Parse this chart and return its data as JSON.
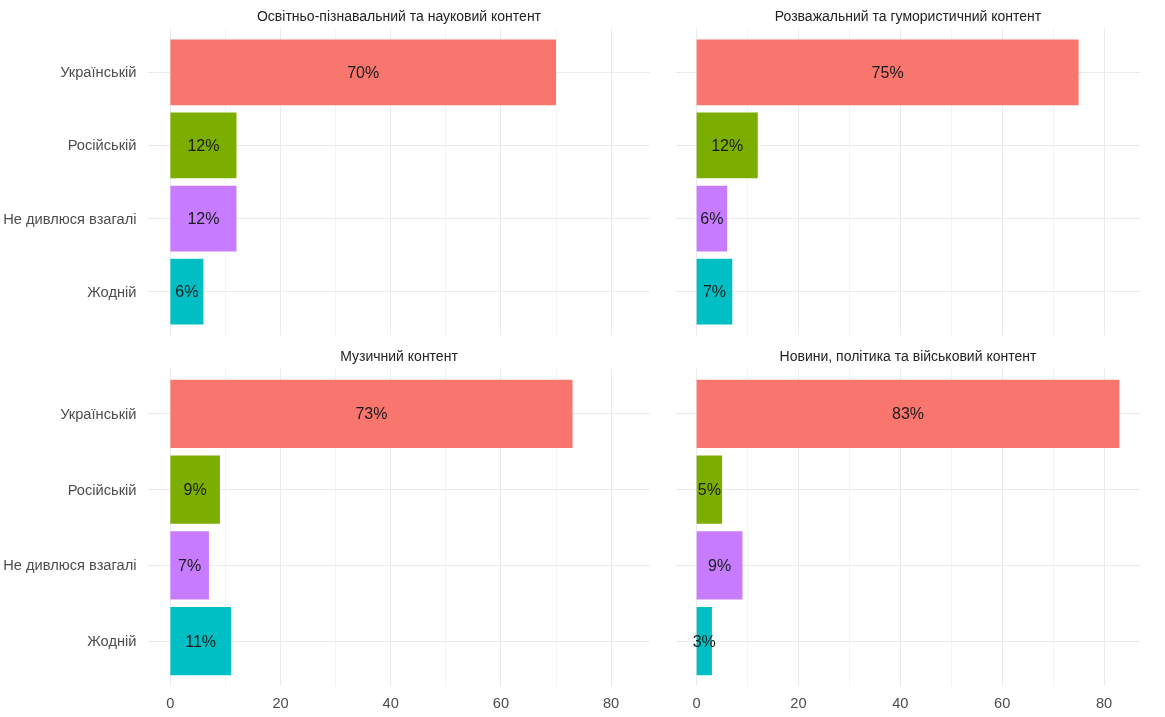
{
  "chart_data": [
    {
      "type": "bar",
      "orientation": "horizontal",
      "title": "Освітньо-пізнавальний та науковий контент",
      "categories": [
        "Українській",
        "Російській",
        "Не дивлюся взагалі",
        "Жодній"
      ],
      "values": [
        70,
        12,
        12,
        6
      ],
      "colors": [
        "#f8766d",
        "#7cae00",
        "#c77cff",
        "#00bfc4"
      ],
      "value_labels": [
        "70%",
        "12%",
        "12%",
        "6%"
      ],
      "xlim": [
        -4.15,
        87.15
      ],
      "xticks": [
        0,
        {
          "value": 10,
          "label": null
        },
        20,
        {
          "value": 30,
          "label": null
        },
        40,
        {
          "value": 50,
          "label": null
        },
        60,
        {
          "value": 70,
          "label": null
        },
        80
      ],
      "grid": true,
      "tick_labels": "y"
    },
    {
      "type": "bar",
      "orientation": "horizontal",
      "title": "Розважальний та гумористичний контент",
      "categories": [
        null,
        null,
        null,
        null
      ],
      "values": [
        75,
        12,
        6,
        7
      ],
      "colors": [
        "#f8766d",
        "#7cae00",
        "#c77cff",
        "#00bfc4"
      ],
      "value_labels": [
        "75%",
        "12%",
        "6%",
        "7%"
      ],
      "xlim": [
        -4.15,
        87.15
      ],
      "xticks": [
        0,
        {
          "value": 10,
          "label": null
        },
        20,
        {
          "value": 30,
          "label": null
        },
        40,
        {
          "value": 50,
          "label": null
        },
        60,
        {
          "value": 70,
          "label": null
        },
        80
      ],
      "grid": true,
      "tick_labels": false
    },
    {
      "type": "bar",
      "orientation": "horizontal",
      "title": "Музичний контент",
      "categories": [
        "Українській",
        "Російській",
        "Не дивлюся взагалі",
        "Жодній"
      ],
      "values": [
        73,
        9,
        7,
        11
      ],
      "colors": [
        "#f8766d",
        "#7cae00",
        "#c77cff",
        "#00bfc4"
      ],
      "value_labels": [
        "73%",
        "9%",
        "7%",
        "11%"
      ],
      "xlim": [
        -4.15,
        87.15
      ],
      "xticks": [
        0,
        {
          "value": 10,
          "label": null
        },
        20,
        {
          "value": 30,
          "label": null
        },
        40,
        {
          "value": 50,
          "label": null
        },
        60,
        {
          "value": 70,
          "label": null
        },
        80
      ],
      "grid": true
    },
    {
      "type": "bar",
      "orientation": "horizontal",
      "title": "Новини, політика та військовий контент",
      "categories": [
        null,
        null,
        null,
        null
      ],
      "values": [
        83,
        5,
        9,
        3
      ],
      "colors": [
        "#f8766d",
        "#7cae00",
        "#c77cff",
        "#00bfc4"
      ],
      "value_labels": [
        "83%",
        "5%",
        "9%",
        "3%"
      ],
      "xlim": [
        -4.15,
        87.15
      ],
      "xticks": [
        0,
        {
          "value": 10,
          "label": null
        },
        20,
        {
          "value": 30,
          "label": null
        },
        40,
        {
          "value": 50,
          "label": null
        },
        60,
        {
          "value": 70,
          "label": null
        },
        80
      ],
      "grid": true,
      "tick_labels": "x"
    }
  ]
}
